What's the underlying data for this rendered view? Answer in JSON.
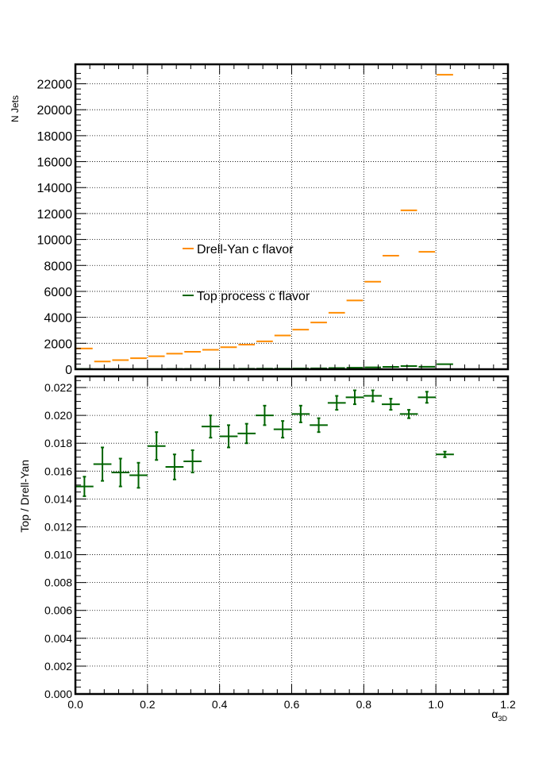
{
  "chart_data": [
    {
      "type": "scatter",
      "panel": "top",
      "title": "",
      "xlabel": "",
      "ylabel": "N Jets",
      "xlim": [
        0,
        1.2
      ],
      "ylim": [
        0,
        23500
      ],
      "yticks": [
        0,
        2000,
        4000,
        6000,
        8000,
        10000,
        12000,
        14000,
        16000,
        18000,
        20000,
        22000
      ],
      "ytick_labels": [
        "0",
        "2000",
        "4000",
        "6000",
        "8000",
        "10000",
        "12000",
        "14000",
        "16000",
        "18000",
        "20000",
        "22000"
      ],
      "grid": true,
      "legend_placement": "middle-left",
      "bin_width": 0.05,
      "series": [
        {
          "name": "Drell-Yan c flavor",
          "color": "#ff8c00",
          "x": [
            0.025,
            0.075,
            0.125,
            0.175,
            0.225,
            0.275,
            0.325,
            0.375,
            0.425,
            0.475,
            0.525,
            0.575,
            0.625,
            0.675,
            0.725,
            0.775,
            0.825,
            0.875,
            0.925,
            0.975,
            1.025
          ],
          "values": [
            1600,
            600,
            700,
            850,
            1000,
            1200,
            1350,
            1500,
            1700,
            1900,
            2150,
            2600,
            3050,
            3600,
            4350,
            5300,
            6750,
            8750,
            12250,
            9050,
            22700
          ]
        },
        {
          "name": "Top process c flavor",
          "color": "#006400",
          "x": [
            0.025,
            0.075,
            0.125,
            0.175,
            0.225,
            0.275,
            0.325,
            0.375,
            0.425,
            0.475,
            0.525,
            0.575,
            0.625,
            0.675,
            0.725,
            0.775,
            0.825,
            0.875,
            0.925,
            0.975,
            1.025
          ],
          "values": [
            24,
            10,
            11,
            13,
            18,
            20,
            23,
            29,
            31,
            35,
            43,
            49,
            61,
            69,
            91,
            113,
            144,
            182,
            246,
            193,
            390
          ]
        }
      ]
    },
    {
      "type": "scatter",
      "panel": "bottom",
      "title": "",
      "xlabel": "α3D",
      "ylabel": "Top / Drell-Yan",
      "xlim": [
        0,
        1.2
      ],
      "ylim": [
        0,
        0.0228
      ],
      "xticks": [
        0,
        0.2,
        0.4,
        0.6,
        0.8,
        1.0,
        1.2
      ],
      "xtick_labels": [
        "0.0",
        "0.2",
        "0.4",
        "0.6",
        "0.8",
        "1.0",
        "1.2"
      ],
      "yticks": [
        0,
        0.002,
        0.004,
        0.006,
        0.008,
        0.01,
        0.012,
        0.014,
        0.016,
        0.018,
        0.02,
        0.022
      ],
      "ytick_labels": [
        "0.000",
        "0.002",
        "0.004",
        "0.006",
        "0.008",
        "0.010",
        "0.012",
        "0.014",
        "0.016",
        "0.018",
        "0.020",
        "0.022"
      ],
      "grid": true,
      "bin_width": 0.05,
      "series": [
        {
          "color": "#006400",
          "x": [
            0.025,
            0.075,
            0.125,
            0.175,
            0.225,
            0.275,
            0.325,
            0.375,
            0.425,
            0.475,
            0.525,
            0.575,
            0.625,
            0.675,
            0.725,
            0.775,
            0.825,
            0.875,
            0.925,
            0.975,
            1.025
          ],
          "values": [
            0.0149,
            0.0165,
            0.0159,
            0.0157,
            0.0178,
            0.0163,
            0.0167,
            0.0192,
            0.0185,
            0.0187,
            0.02,
            0.019,
            0.0201,
            0.0193,
            0.0209,
            0.0213,
            0.0214,
            0.0208,
            0.0201,
            0.0213,
            0.0172
          ],
          "yerr": [
            0.0007,
            0.0012,
            0.001,
            0.0009,
            0.001,
            0.0009,
            0.0008,
            0.0008,
            0.0008,
            0.0007,
            0.0007,
            0.0006,
            0.0006,
            0.0005,
            0.0005,
            0.0005,
            0.0004,
            0.0004,
            0.0003,
            0.0004,
            0.0002
          ]
        }
      ]
    }
  ]
}
